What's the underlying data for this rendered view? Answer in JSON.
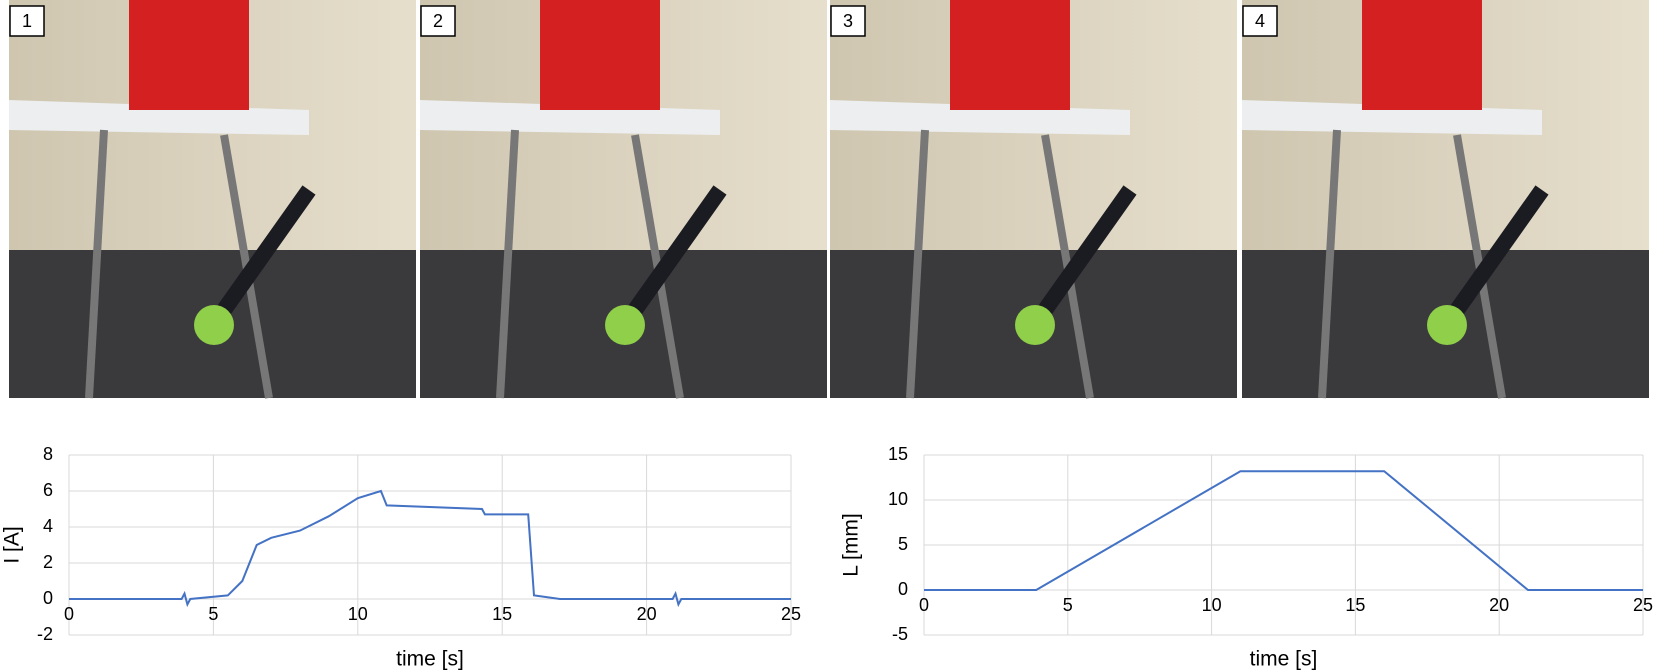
{
  "panels": [
    {
      "label": "1"
    },
    {
      "label": "2"
    },
    {
      "label": "3"
    },
    {
      "label": "4"
    }
  ],
  "chart_data": [
    {
      "type": "line",
      "y_label": "I [A]",
      "x_label": "time [s]",
      "color": "#4472c4",
      "grid": true,
      "x": [
        0,
        3.9,
        4.0,
        4.1,
        4.2,
        5.5,
        6.0,
        6.5,
        7.0,
        8.0,
        9.0,
        10.0,
        10.8,
        11.0,
        14.3,
        14.4,
        15.9,
        16.1,
        17.0,
        20.9,
        21.0,
        21.1,
        21.2,
        25
      ],
      "values": [
        0,
        0,
        0.3,
        -0.3,
        0,
        0.2,
        1.0,
        3.0,
        3.4,
        3.8,
        4.6,
        5.6,
        6.0,
        5.2,
        5.0,
        4.7,
        4.7,
        0.2,
        0,
        0,
        0.3,
        -0.3,
        0,
        0
      ],
      "xlim": [
        0,
        25
      ],
      "xticks": [
        0,
        5,
        10,
        15,
        20,
        25
      ],
      "ylim": [
        -2,
        8
      ],
      "yticks": [
        -2,
        0,
        2,
        4,
        6,
        8
      ]
    },
    {
      "type": "line",
      "y_label": "L [mm]",
      "x_label": "time [s]",
      "color": "#4472c4",
      "grid": true,
      "x": [
        0,
        3.9,
        11,
        16,
        21,
        25
      ],
      "values": [
        0,
        0,
        13.2,
        13.2,
        0,
        0
      ],
      "xlim": [
        0,
        25
      ],
      "xticks": [
        0,
        5,
        10,
        15,
        20,
        25
      ],
      "ylim": [
        -5,
        15
      ],
      "yticks": [
        -5,
        0,
        5,
        10,
        15
      ]
    }
  ]
}
